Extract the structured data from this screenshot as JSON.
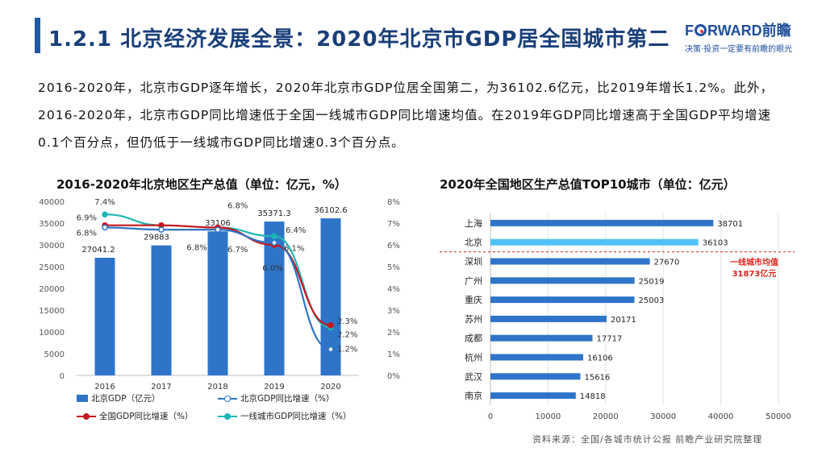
{
  "header": {
    "title": "1.2.1 北京经济发展全景：2020年北京市GDP居全国城市第二",
    "logo_brand_left": "F",
    "logo_brand_right": "RWARD前瞻",
    "logo_tagline": "决策·投资一定要有前瞻的眼光",
    "accent_color": "#1f5aa6"
  },
  "intro": {
    "text": "2016-2020年，北京市GDP逐年增长，2020年北京市GDP位居全国第二，为36102.6亿元，比2019年增长1.2%。此外，2016-2020年，北京市GDP同比增速低于全国一线城市GDP同比增速均值。在2019年GDP同比增速高于全国GDP平均增速0.1个百分点，但仍低于一线城市GDP同比增速0.3个百分点。"
  },
  "chart_data": [
    {
      "type": "bar",
      "title": "2016-2020年北京地区生产总值（单位：亿元，%）",
      "categories": [
        "2016",
        "2017",
        "2018",
        "2019",
        "2020"
      ],
      "ylim": [
        0,
        40000
      ],
      "y_ticks": [
        "0",
        "5000",
        "10000",
        "15000",
        "20000",
        "25000",
        "30000",
        "35000",
        "40000"
      ],
      "y2lim": [
        0,
        8
      ],
      "y2_ticks": [
        "0%",
        "1%",
        "2%",
        "3%",
        "4%",
        "5%",
        "6%",
        "7%",
        "8%"
      ],
      "grid": false,
      "legend_position": "bottom",
      "series": [
        {
          "name": "北京GDP（亿元）",
          "kind": "bar",
          "color": "#2e75c9",
          "values": [
            27041.2,
            29883,
            33106,
            35371.3,
            36102.6
          ],
          "labels": [
            "27041.2",
            "29883",
            "33106",
            "35371.3",
            "36102.6"
          ]
        },
        {
          "name": "北京GDP同比增速（%）",
          "kind": "line",
          "axis": "right",
          "color": "#2e75c9",
          "values": [
            6.8,
            6.7,
            6.7,
            6.1,
            1.2
          ],
          "labels": [
            "6.8%",
            "6.7%",
            "6.7%",
            "6.1%",
            "1.2%"
          ]
        },
        {
          "name": "全国GDP同比增速（%）",
          "kind": "line",
          "axis": "right",
          "color": "#c8161d",
          "values": [
            6.9,
            6.9,
            6.8,
            6.0,
            2.3
          ],
          "labels": [
            "6.9%",
            "6.9%",
            "6.8%",
            "6.0%",
            "2.3%"
          ]
        },
        {
          "name": "一线城市GDP同比增速（%）",
          "kind": "line",
          "axis": "right",
          "color": "#1fb5b5",
          "values": [
            7.4,
            6.9,
            6.8,
            6.4,
            2.2
          ],
          "labels": [
            "7.4%",
            "6.9%",
            "6.8%",
            "6.4%",
            "2.2%"
          ]
        }
      ]
    },
    {
      "type": "bar",
      "orientation": "horizontal",
      "title": "2020年全国地区生产总值TOP10城市（单位：亿元）",
      "categories": [
        "上海",
        "北京",
        "深圳",
        "广州",
        "重庆",
        "苏州",
        "成都",
        "杭州",
        "武汉",
        "南京"
      ],
      "values": [
        38701,
        36103,
        27670,
        25019,
        25003,
        20171,
        17717,
        16106,
        15616,
        14818
      ],
      "labels": [
        "38701",
        "36103",
        "27670",
        "25019",
        "25003",
        "20171",
        "17717",
        "16106",
        "15616",
        "14818"
      ],
      "xlim": [
        0,
        50000
      ],
      "x_ticks": [
        "0",
        "10000",
        "20000",
        "30000",
        "40000",
        "50000"
      ],
      "grid": true,
      "bar_color": "#2e75c9",
      "highlight_color": "#4fc3f7",
      "highlight_category": "北京",
      "annotation": {
        "text_line1": "一线城市均值",
        "text_line2": "31873亿元",
        "value": 31873,
        "color": "#d9261c"
      }
    }
  ],
  "footer": {
    "source": "资料来源：全国/各城市统计公报 前瞻产业研究院整理"
  }
}
